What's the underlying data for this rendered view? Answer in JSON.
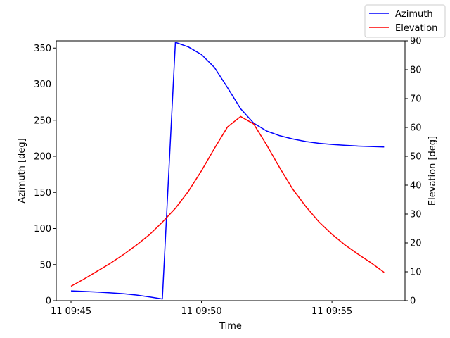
{
  "chart_data": {
    "type": "line",
    "xlabel": "Time",
    "ylabel_left": "Azimuth [deg]",
    "ylabel_right": "Elevation [deg]",
    "x_tick_labels": [
      "11 09:45",
      "11 09:50",
      "11 09:55"
    ],
    "x_tick_values": [
      "09:45",
      "09:50",
      "09:55"
    ],
    "x": [
      "09:45:00",
      "09:45:30",
      "09:46:00",
      "09:46:30",
      "09:47:00",
      "09:47:30",
      "09:48:00",
      "09:48:30",
      "09:49:00",
      "09:49:30",
      "09:50:00",
      "09:50:30",
      "09:51:00",
      "09:51:30",
      "09:52:00",
      "09:52:30",
      "09:53:00",
      "09:53:30",
      "09:54:00",
      "09:54:30",
      "09:55:00",
      "09:55:30",
      "09:56:00",
      "09:56:30",
      "09:57:00"
    ],
    "xlim": [
      "09:44:26",
      "09:57:48"
    ],
    "left_ylim": [
      0,
      360
    ],
    "right_ylim": [
      0,
      90
    ],
    "left_yticks": [
      0,
      50,
      100,
      150,
      200,
      250,
      300,
      350
    ],
    "right_yticks": [
      0,
      10,
      20,
      30,
      40,
      50,
      60,
      70,
      80,
      90
    ],
    "grid": false,
    "legend_position": "top-right",
    "series": [
      {
        "name": "Azimuth",
        "axis": "left",
        "color": "#0000ff",
        "x": [
          "09:45:00",
          "09:45:30",
          "09:46:00",
          "09:46:30",
          "09:47:00",
          "09:47:30",
          "09:48:00",
          "09:48:30",
          "09:49:00",
          "09:49:30",
          "09:50:00",
          "09:50:30",
          "09:51:00",
          "09:51:30",
          "09:52:00",
          "09:52:30",
          "09:53:00",
          "09:53:30",
          "09:54:00",
          "09:54:30",
          "09:55:00",
          "09:55:30",
          "09:56:00",
          "09:56:30",
          "09:57:00"
        ],
        "values": [
          13.5,
          12.8,
          11.9,
          10.9,
          9.6,
          7.8,
          5.2,
          2.3,
          358,
          351.5,
          341,
          323,
          295,
          266,
          246,
          235,
          228.5,
          224,
          220.5,
          218,
          216.5,
          215.2,
          214.2,
          213.5,
          212.9
        ]
      },
      {
        "name": "Elevation",
        "axis": "right",
        "color": "#ff0000",
        "x": [
          "09:45:00",
          "09:45:30",
          "09:46:00",
          "09:46:30",
          "09:47:00",
          "09:47:30",
          "09:48:00",
          "09:48:30",
          "09:49:00",
          "09:49:30",
          "09:50:00",
          "09:50:30",
          "09:51:00",
          "09:51:30",
          "09:52:00",
          "09:52:30",
          "09:53:00",
          "09:53:30",
          "09:54:00",
          "09:54:30",
          "09:55:00",
          "09:55:30",
          "09:56:00",
          "09:56:30",
          "09:57:00"
        ],
        "values": [
          5.0,
          7.5,
          10.2,
          12.9,
          15.9,
          19.2,
          22.8,
          27.2,
          32.0,
          37.9,
          45.0,
          52.8,
          60.2,
          63.8,
          61.2,
          53.9,
          46.0,
          38.6,
          32.6,
          27.3,
          23.0,
          19.3,
          16.1,
          13.1,
          9.8
        ]
      }
    ]
  }
}
